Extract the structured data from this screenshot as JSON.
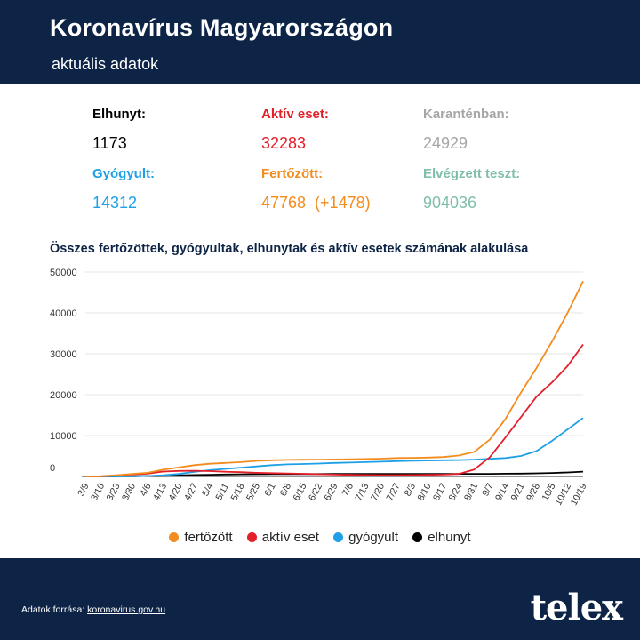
{
  "header": {
    "title": "Koronavírus Magyarországon",
    "subtitle": "aktuális adatok"
  },
  "stats": {
    "elhunyt": {
      "label": "Elhunyt:",
      "value": "1173",
      "color": "#000000"
    },
    "aktiv": {
      "label": "Aktív eset:",
      "value": "32283",
      "color": "#e3202a"
    },
    "karanten": {
      "label": "Karanténban:",
      "value": "24929",
      "color": "#a6a6a6"
    },
    "gyogyult": {
      "label": "Gyógyult:",
      "value": "14312",
      "color": "#1ea0e6"
    },
    "fertozott": {
      "label": "Fertőzött:",
      "value": "47768  (+1478)",
      "color": "#f28c1e"
    },
    "teszt": {
      "label": "Elvégzett teszt:",
      "value": "904036",
      "color": "#7fbfa8"
    }
  },
  "chart_data": {
    "type": "line",
    "title": "Összes fertőzöttek, gyógyultak, elhunytak és aktív esetek számának alakulása",
    "categories": [
      "3/9",
      "3/16",
      "3/23",
      "3/30",
      "4/6",
      "4/13",
      "4/20",
      "4/27",
      "5/4",
      "5/11",
      "5/18",
      "5/25",
      "6/1",
      "6/8",
      "6/15",
      "6/22",
      "6/29",
      "7/6",
      "7/13",
      "7/20",
      "7/27",
      "8/3",
      "8/10",
      "8/17",
      "8/24",
      "8/31",
      "9/7",
      "9/14",
      "9/21",
      "9/28",
      "10/5",
      "10/12",
      "10/19"
    ],
    "ylim": [
      0,
      50000
    ],
    "yticks": [
      0,
      10000,
      20000,
      30000,
      40000,
      50000
    ],
    "grid": true,
    "legend_position": "bottom",
    "series": [
      {
        "name": "fertőzött",
        "color": "#f28c1e",
        "values": [
          0,
          50,
          300,
          600,
          900,
          1650,
          2200,
          2750,
          3100,
          3300,
          3500,
          3800,
          3950,
          4050,
          4080,
          4100,
          4150,
          4200,
          4250,
          4350,
          4500,
          4550,
          4600,
          4750,
          5100,
          6000,
          9000,
          14000,
          20500,
          26500,
          33000,
          40000,
          47768
        ]
      },
      {
        "name": "aktív eset",
        "color": "#e3202a",
        "values": [
          0,
          40,
          250,
          500,
          700,
          1200,
          1350,
          1400,
          1300,
          1150,
          1050,
          900,
          800,
          750,
          650,
          550,
          450,
          400,
          350,
          330,
          330,
          350,
          400,
          450,
          600,
          1700,
          4700,
          9500,
          14500,
          19500,
          23000,
          27000,
          32283
        ]
      },
      {
        "name": "gyógyult",
        "color": "#1ea0e6",
        "values": [
          0,
          5,
          20,
          50,
          100,
          300,
          600,
          1100,
          1550,
          1850,
          2150,
          2450,
          2750,
          2950,
          3050,
          3150,
          3300,
          3400,
          3500,
          3600,
          3750,
          3850,
          3900,
          3950,
          4000,
          4100,
          4300,
          4500,
          5000,
          6200,
          8700,
          11500,
          14312
        ]
      },
      {
        "name": "elhunyt",
        "color": "#000000",
        "values": [
          0,
          5,
          20,
          50,
          100,
          150,
          250,
          350,
          420,
          480,
          520,
          550,
          570,
          580,
          590,
          595,
          600,
          605,
          610,
          612,
          615,
          615,
          616,
          617,
          620,
          625,
          640,
          670,
          700,
          760,
          850,
          980,
          1173
        ]
      }
    ]
  },
  "legend": {
    "items": [
      {
        "label": "fertőzött",
        "color": "#f28c1e"
      },
      {
        "label": "aktív eset",
        "color": "#e3202a"
      },
      {
        "label": "gyógyult",
        "color": "#1ea0e6"
      },
      {
        "label": "elhunyt",
        "color": "#000000"
      }
    ]
  },
  "footer": {
    "source_prefix": "Adatok forrása:",
    "source_link": "koronavirus.gov.hu",
    "brand": "telex"
  }
}
